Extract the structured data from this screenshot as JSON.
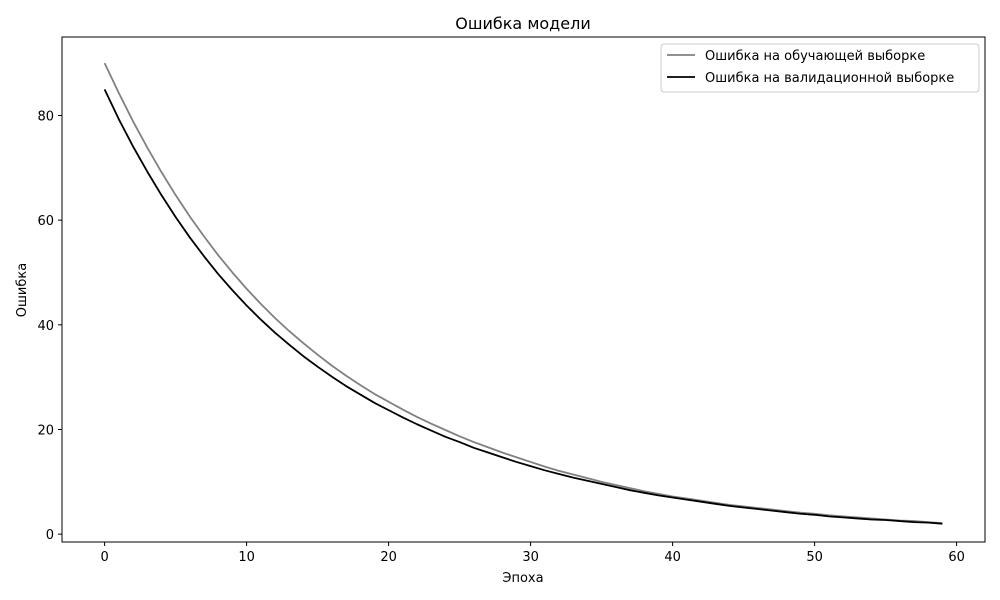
{
  "chart_data": {
    "type": "line",
    "title": "Ошибка модели",
    "xlabel": "Эпоха",
    "ylabel": "Ошибка",
    "xlim": [
      -3,
      62
    ],
    "ylim": [
      -1.5,
      95
    ],
    "xticks": [
      0,
      10,
      20,
      30,
      40,
      50,
      60
    ],
    "yticks": [
      0,
      20,
      40,
      60,
      80
    ],
    "grid": false,
    "legend_position": "top-right",
    "x": [
      0,
      1,
      2,
      3,
      4,
      5,
      6,
      7,
      8,
      9,
      10,
      11,
      12,
      13,
      14,
      15,
      16,
      17,
      18,
      19,
      20,
      21,
      22,
      23,
      24,
      25,
      26,
      27,
      28,
      29,
      30,
      31,
      32,
      33,
      34,
      35,
      36,
      37,
      38,
      39,
      40,
      41,
      42,
      43,
      44,
      45,
      46,
      47,
      48,
      49,
      50,
      51,
      52,
      53,
      54,
      55,
      56,
      57,
      58,
      59
    ],
    "series": [
      {
        "name": "Ошибка на обучающей выборке",
        "color": "#808080",
        "values": [
          90.0,
          84.3,
          78.9,
          73.9,
          69.2,
          64.8,
          60.7,
          56.9,
          53.3,
          50.0,
          46.9,
          44.0,
          41.3,
          38.8,
          36.5,
          34.3,
          32.2,
          30.3,
          28.5,
          26.8,
          25.3,
          23.8,
          22.4,
          21.1,
          19.9,
          18.7,
          17.6,
          16.6,
          15.6,
          14.7,
          13.8,
          12.9,
          12.1,
          11.4,
          10.7,
          10.0,
          9.4,
          8.8,
          8.2,
          7.7,
          7.2,
          6.8,
          6.4,
          6.0,
          5.6,
          5.3,
          5.0,
          4.7,
          4.4,
          4.1,
          3.9,
          3.6,
          3.4,
          3.2,
          3.0,
          2.8,
          2.6,
          2.5,
          2.3,
          2.1
        ]
      },
      {
        "name": "Ошибка на валидационной выборке",
        "color": "#000000",
        "values": [
          85.0,
          79.3,
          74.1,
          69.3,
          64.8,
          60.6,
          56.7,
          53.1,
          49.7,
          46.6,
          43.7,
          41.0,
          38.5,
          36.2,
          34.0,
          32.0,
          30.1,
          28.3,
          26.7,
          25.1,
          23.7,
          22.3,
          21.0,
          19.8,
          18.6,
          17.6,
          16.5,
          15.6,
          14.7,
          13.8,
          13.0,
          12.2,
          11.5,
          10.8,
          10.2,
          9.6,
          9.0,
          8.4,
          7.9,
          7.4,
          7.0,
          6.6,
          6.2,
          5.8,
          5.4,
          5.1,
          4.8,
          4.5,
          4.2,
          3.9,
          3.7,
          3.4,
          3.2,
          3.0,
          2.8,
          2.7,
          2.5,
          2.3,
          2.2,
          2.0
        ]
      }
    ]
  }
}
